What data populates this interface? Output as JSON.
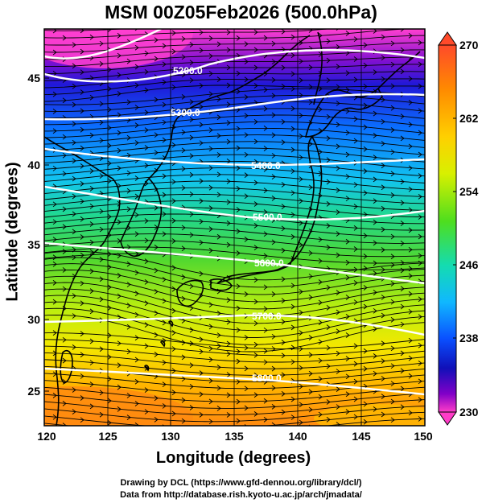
{
  "title": "MSM 00Z05Feb2026 (500.0hPa)",
  "x_axis": {
    "label": "Longitude (degrees)",
    "ticks": [
      "120",
      "125",
      "130",
      "135",
      "140",
      "145",
      "150"
    ]
  },
  "y_axis": {
    "label": "Latitude (degrees)",
    "ticks": [
      "25",
      "30",
      "35",
      "40",
      "45"
    ]
  },
  "colorbar": {
    "ticks": [
      "270",
      "262",
      "254",
      "246",
      "238",
      "230"
    ],
    "colors": [
      "#ff4a2a",
      "#ff8a00",
      "#ffd000",
      "#d8f000",
      "#5ee01a",
      "#16d8a0",
      "#10c4ff",
      "#0a60ff",
      "#1010c0",
      "#7a00c8",
      "#ff3cc8"
    ]
  },
  "contours": [
    "5200.0",
    "5300.0",
    "5400.0",
    "5500.0",
    "5600.0",
    "5700.0",
    "5800.0"
  ],
  "credits": {
    "line1": "Drawing by DCL (https://www.gfd-dennou.org/library/dcl/)",
    "line2": "Data from http://database.rish.kyoto-u.ac.jp/arch/jmadata/"
  }
}
